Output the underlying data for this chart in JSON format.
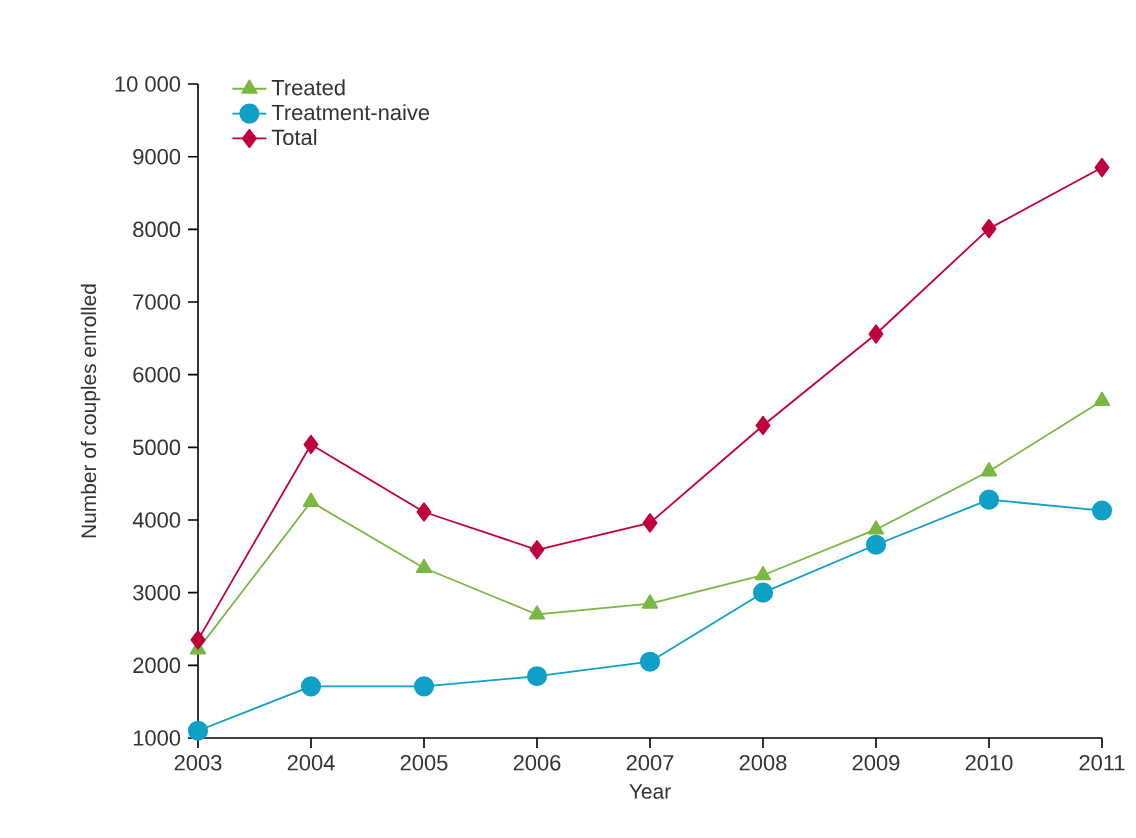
{
  "chart_data": {
    "type": "line",
    "xlabel": "Year",
    "ylabel": "Number of couples enrolled",
    "x": [
      2003,
      2004,
      2005,
      2006,
      2007,
      2008,
      2009,
      2010,
      2011
    ],
    "xlim": [
      2003,
      2011
    ],
    "xticks": [
      2003,
      2004,
      2005,
      2006,
      2007,
      2008,
      2009,
      2010,
      2011
    ],
    "ylim": [
      1000,
      10000
    ],
    "yticks": [
      1000,
      2000,
      3000,
      4000,
      5000,
      6000,
      7000,
      8000,
      9000,
      {
        "value": 10000,
        "label": "10 000"
      }
    ],
    "legend": "top left",
    "grid": false,
    "series": [
      {
        "name": "Treated",
        "color": "#78b843",
        "marker": "triangle",
        "values": [
          2220,
          4250,
          3340,
          2700,
          2850,
          3240,
          3870,
          4670,
          5640
        ]
      },
      {
        "name": "Treatment-naive",
        "color": "#0fa0c8",
        "marker": "circle",
        "values": [
          1100,
          1710,
          1710,
          1850,
          2050,
          3000,
          3660,
          4280,
          4130
        ]
      },
      {
        "name": "Total",
        "color": "#c0003c",
        "marker": "diamond",
        "values": [
          2350,
          5040,
          4110,
          3590,
          3960,
          5300,
          6560,
          8010,
          8850
        ]
      }
    ]
  }
}
